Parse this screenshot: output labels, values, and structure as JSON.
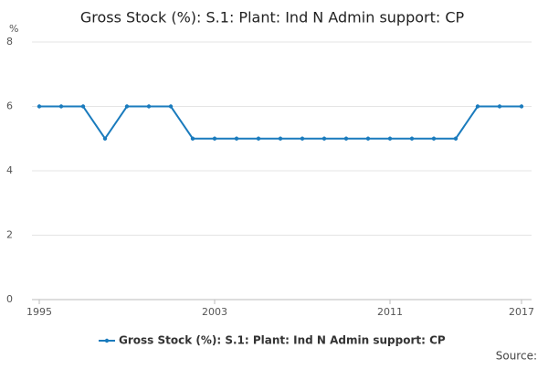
{
  "chart_data": {
    "type": "line",
    "title": "Gross Stock (%): S.1: Plant: Ind N Admin support: CP",
    "y_unit": "%",
    "source": "Source:",
    "x": [
      1995,
      1996,
      1997,
      1998,
      1999,
      2000,
      2001,
      2002,
      2003,
      2004,
      2005,
      2006,
      2007,
      2008,
      2009,
      2010,
      2011,
      2012,
      2013,
      2014,
      2015,
      2016,
      2017
    ],
    "series": [
      {
        "name": "Gross Stock (%): S.1: Plant: Ind N Admin support: CP",
        "color": "#1a7bbd",
        "values": [
          6,
          6,
          6,
          5,
          6,
          6,
          6,
          5,
          5,
          5,
          5,
          5,
          5,
          5,
          5,
          5,
          5,
          5,
          5,
          5,
          6,
          6,
          6
        ]
      }
    ],
    "xlim": [
      1995,
      2017
    ],
    "xticks": [
      1995,
      2003,
      2011,
      2017
    ],
    "ylim": [
      0,
      8
    ],
    "yticks": [
      0,
      2,
      4,
      6,
      8
    ],
    "grid": true
  }
}
